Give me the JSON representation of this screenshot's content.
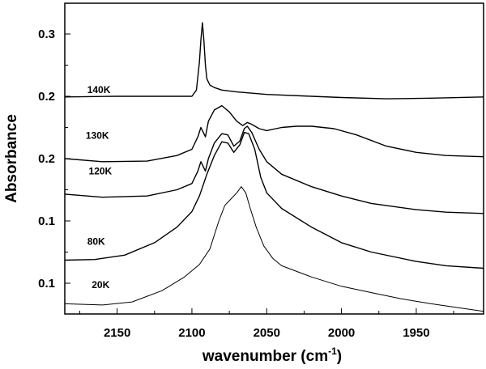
{
  "chart_data": {
    "type": "line",
    "title": "",
    "xlabel": "wavenumber (cm",
    "xlabel_sup": "-1",
    "xlabel_close": ")",
    "ylabel": "Absorbance",
    "x_reversed": true,
    "xlim": [
      2185,
      1905
    ],
    "grid": false,
    "legend": "none",
    "x_ticks": [
      {
        "value": 2150,
        "label": "2150"
      },
      {
        "value": 2100,
        "label": "2100"
      },
      {
        "value": 2050,
        "label": "2050"
      },
      {
        "value": 2000,
        "label": "2000"
      },
      {
        "value": 1950,
        "label": "1950"
      }
    ],
    "y_tick_labels": [
      {
        "label": "0.3",
        "pos": 0.0
      },
      {
        "label": "0.2",
        "pos": 1.0
      },
      {
        "label": "0.2",
        "pos": 2.0
      },
      {
        "label": "0.1",
        "pos": 3.0
      },
      {
        "label": "0.1",
        "pos": 4.0
      }
    ],
    "y_scale_note": "offset stacked spectra; y values in plot units where each major tick step = 1.0, y=0 at top tick '0.3'",
    "series": [
      {
        "name": "140K",
        "color": "#000000",
        "x": [
          2185,
          2150,
          2120,
          2100,
          2097,
          2095,
          2094,
          2093,
          2092,
          2091,
          2090,
          2088,
          2085,
          2080,
          2070,
          2050,
          2020,
          2000,
          1970,
          1940,
          1905
        ],
        "y": [
          1.01,
          1.0,
          1.0,
          1.0,
          0.9,
          0.45,
          0.1,
          -0.18,
          0.1,
          0.5,
          0.72,
          0.82,
          0.86,
          0.9,
          0.93,
          0.97,
          1.0,
          1.02,
          1.04,
          1.03,
          1.01
        ]
      },
      {
        "name": "130K",
        "color": "#000000",
        "x": [
          2185,
          2160,
          2130,
          2110,
          2100,
          2096,
          2094,
          2093,
          2091,
          2089,
          2085,
          2080,
          2075,
          2070,
          2066,
          2063,
          2060,
          2055,
          2050,
          2040,
          2030,
          2020,
          2005,
          1990,
          1970,
          1950,
          1930,
          1905
        ],
        "y": [
          2.0,
          2.05,
          2.04,
          1.95,
          1.85,
          1.65,
          1.5,
          1.55,
          1.65,
          1.4,
          1.22,
          1.15,
          1.25,
          1.4,
          1.47,
          1.42,
          1.45,
          1.52,
          1.55,
          1.5,
          1.48,
          1.48,
          1.52,
          1.62,
          1.8,
          1.9,
          1.95,
          1.97
        ]
      },
      {
        "name": "120K",
        "color": "#000000",
        "x": [
          2185,
          2160,
          2130,
          2110,
          2100,
          2096,
          2094,
          2093,
          2091,
          2089,
          2085,
          2080,
          2076,
          2072,
          2068,
          2065,
          2063,
          2060,
          2055,
          2050,
          2040,
          2020,
          2000,
          1980,
          1950,
          1930,
          1905
        ],
        "y": [
          2.57,
          2.62,
          2.6,
          2.5,
          2.4,
          2.2,
          2.05,
          2.1,
          2.2,
          2.0,
          1.75,
          1.6,
          1.62,
          1.8,
          1.72,
          1.52,
          1.48,
          1.58,
          1.85,
          2.05,
          2.25,
          2.45,
          2.6,
          2.72,
          2.82,
          2.86,
          2.88
        ]
      },
      {
        "name": "80K",
        "color": "#000000",
        "x": [
          2185,
          2165,
          2145,
          2125,
          2110,
          2100,
          2095,
          2090,
          2085,
          2080,
          2076,
          2072,
          2068,
          2065,
          2062,
          2058,
          2054,
          2050,
          2040,
          2020,
          2000,
          1980,
          1950,
          1930,
          1905
        ],
        "y": [
          3.63,
          3.62,
          3.55,
          3.35,
          3.1,
          2.85,
          2.6,
          2.25,
          1.95,
          1.73,
          1.75,
          1.9,
          1.78,
          1.58,
          1.6,
          1.85,
          2.3,
          2.55,
          2.8,
          3.1,
          3.35,
          3.5,
          3.65,
          3.72,
          3.76
        ]
      },
      {
        "name": "20K",
        "color": "#000000",
        "x": [
          2185,
          2160,
          2140,
          2120,
          2105,
          2095,
          2088,
          2082,
          2078,
          2074,
          2070,
          2067,
          2064,
          2061,
          2057,
          2052,
          2046,
          2040,
          2020,
          2000,
          1980,
          1960,
          1940,
          1920,
          1905
        ],
        "y": [
          4.33,
          4.35,
          4.3,
          4.12,
          3.9,
          3.7,
          3.45,
          3.0,
          2.75,
          2.65,
          2.55,
          2.45,
          2.55,
          2.8,
          3.1,
          3.4,
          3.6,
          3.72,
          3.9,
          4.05,
          4.15,
          4.25,
          4.33,
          4.4,
          4.45
        ]
      }
    ],
    "annotations": [
      {
        "text": "140K",
        "series": "140K",
        "x": 2170,
        "y": 0.95
      },
      {
        "text": "130K",
        "series": "130K",
        "x": 2171,
        "y": 1.68
      },
      {
        "text": "120K",
        "series": "120K",
        "x": 2169,
        "y": 2.25
      },
      {
        "text": "80K",
        "series": "80K",
        "x": 2170,
        "y": 3.38
      },
      {
        "text": "20K",
        "series": "20K",
        "x": 2167,
        "y": 4.08
      }
    ]
  }
}
